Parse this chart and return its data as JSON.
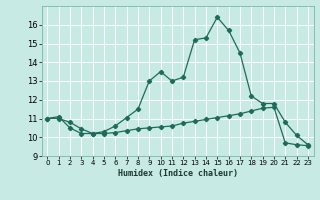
{
  "xlabel": "Humidex (Indice chaleur)",
  "xlim": [
    -0.5,
    23.5
  ],
  "ylim": [
    9,
    17
  ],
  "yticks": [
    9,
    10,
    11,
    12,
    13,
    14,
    15,
    16
  ],
  "xticks": [
    0,
    1,
    2,
    3,
    4,
    5,
    6,
    7,
    8,
    9,
    10,
    11,
    12,
    13,
    14,
    15,
    16,
    17,
    18,
    19,
    20,
    21,
    22,
    23
  ],
  "bg_color": "#c8eae4",
  "line_color": "#1e6b5a",
  "grid_color": "#ffffff",
  "line1_x": [
    0,
    1,
    2,
    3,
    4,
    5,
    6,
    7,
    8,
    9,
    10,
    11,
    12,
    13,
    14,
    15,
    16,
    17,
    18,
    19,
    20,
    21,
    22,
    23
  ],
  "line1_y": [
    11.0,
    11.1,
    10.5,
    10.2,
    10.2,
    10.3,
    10.6,
    11.05,
    11.5,
    13.0,
    13.5,
    13.0,
    13.2,
    15.2,
    15.3,
    16.4,
    15.7,
    14.5,
    12.2,
    11.8,
    11.8,
    10.8,
    10.1,
    9.6
  ],
  "line2_x": [
    0,
    1,
    2,
    3,
    4,
    5,
    6,
    7,
    8,
    9,
    10,
    11,
    12,
    13,
    14,
    15,
    16,
    17,
    18,
    19,
    20,
    21,
    22,
    23
  ],
  "line2_y": [
    11.0,
    11.0,
    10.8,
    10.45,
    10.2,
    10.2,
    10.25,
    10.35,
    10.45,
    10.5,
    10.55,
    10.6,
    10.75,
    10.85,
    10.95,
    11.05,
    11.15,
    11.25,
    11.4,
    11.55,
    11.6,
    9.7,
    9.6,
    9.55
  ]
}
